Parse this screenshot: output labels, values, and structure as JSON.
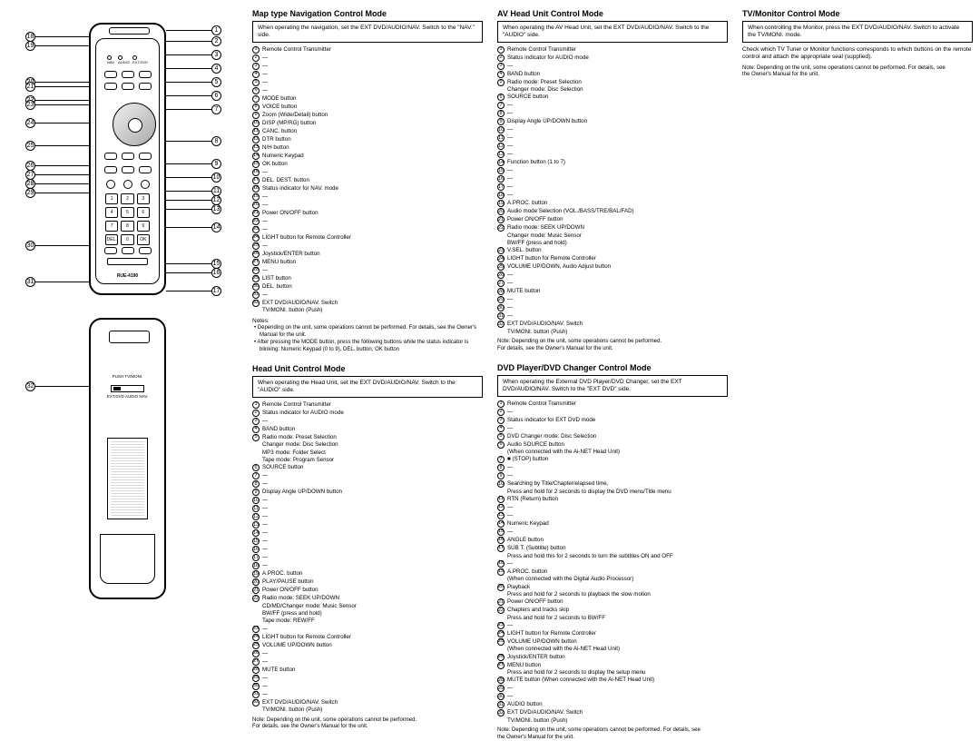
{
  "remoteModel": "RUE-4190",
  "rearSwitchLabel": "PUSH  TV/MONI.",
  "rearSwitchModes": "EXT.DVD   AUDIO   NAV.",
  "calloutsRight": [
    "1",
    "2",
    "3",
    "4",
    "5",
    "6",
    "7",
    "8",
    "9",
    "10",
    "11",
    "12",
    "13",
    "14",
    "15",
    "16",
    "17"
  ],
  "calloutsLeft": [
    "18",
    "19",
    "20",
    "21",
    "22",
    "23",
    "24",
    "25",
    "26",
    "27",
    "28",
    "29",
    "30",
    "31"
  ],
  "rearCallout": "32",
  "sections": {
    "mapNav": {
      "title": "Map type Navigation Control Mode",
      "notice": "When operating the navigation, set the EXT DVD/AUDIO/NAV. Switch to the \"NAV.\" side.",
      "items": [
        {
          "n": "1",
          "t": "Remote Control Transmitter"
        },
        {
          "n": "2",
          "t": "—"
        },
        {
          "n": "3",
          "t": "—"
        },
        {
          "n": "4",
          "t": "—"
        },
        {
          "n": "5",
          "t": "—"
        },
        {
          "n": "6",
          "t": "—"
        },
        {
          "n": "7",
          "t": "MODE button"
        },
        {
          "n": "8",
          "t": "VOICE button"
        },
        {
          "n": "9",
          "t": "Zoom (Wide/Detail) button"
        },
        {
          "n": "10",
          "t": "DISP (MP/RG) button"
        },
        {
          "n": "11",
          "t": "CANC. button"
        },
        {
          "n": "12",
          "t": "DTR button"
        },
        {
          "n": "13",
          "t": "N/H button"
        },
        {
          "n": "14",
          "t": "Numeric Keypad"
        },
        {
          "n": "15",
          "t": "OK button"
        },
        {
          "n": "16",
          "t": "—"
        },
        {
          "n": "17",
          "t": "DEL. DEST. button"
        },
        {
          "n": "18",
          "t": "Status indicator for NAV. mode"
        },
        {
          "n": "19",
          "t": "—"
        },
        {
          "n": "20",
          "t": "—"
        },
        {
          "n": "21",
          "t": "Power ON/OFF button"
        },
        {
          "n": "22",
          "t": "—"
        },
        {
          "n": "23",
          "t": "—"
        },
        {
          "n": "24",
          "t": "LIGHT button for Remote Controller"
        },
        {
          "n": "25",
          "t": "—"
        },
        {
          "n": "26",
          "t": "Joystick/ENTER button"
        },
        {
          "n": "27",
          "t": "MENU button"
        },
        {
          "n": "28",
          "t": "—"
        },
        {
          "n": "29",
          "t": "LIST button"
        },
        {
          "n": "30",
          "t": "DEL. button"
        },
        {
          "n": "31",
          "t": "—"
        },
        {
          "n": "32",
          "t": "EXT DVD/AUDIO/NAV. Switch\nTV/MONI. button (Push)"
        }
      ],
      "notesHeader": "Notes:",
      "notes": [
        "• Depending on the unit, some operations cannot be performed.\n   For details, see the Owner's Manual for the unit.",
        "• After pressing the MODE button, press the following buttons while the status indicator is blinking:\n   Numeric Keypad (0 to 9), DEL. button, OK button"
      ]
    },
    "headUnit": {
      "title": "Head Unit Control Mode",
      "notice": "When operating the Head Unit, set the EXT DVD/AUDIO/NAV. Switch to the \"AUDIO\" side.",
      "items": [
        {
          "n": "1",
          "t": "Remote Control Transmitter"
        },
        {
          "n": "2",
          "t": "Status indicator for AUDIO mode"
        },
        {
          "n": "3",
          "t": "—"
        },
        {
          "n": "4",
          "t": "BAND button"
        },
        {
          "n": "5",
          "t": "Radio mode: Preset Selection\nChanger mode: Disc Selection\nMP3 mode: Folder Select\nTape mode: Program Sensor"
        },
        {
          "n": "6",
          "t": "SOURCE button"
        },
        {
          "n": "7",
          "t": "—"
        },
        {
          "n": "8",
          "t": "—"
        },
        {
          "n": "9",
          "t": "Display Angle UP/DOWN button"
        },
        {
          "n": "10",
          "t": "—"
        },
        {
          "n": "11",
          "t": "—"
        },
        {
          "n": "12",
          "t": "—"
        },
        {
          "n": "13",
          "t": "—"
        },
        {
          "n": "14",
          "t": "—"
        },
        {
          "n": "15",
          "t": "—"
        },
        {
          "n": "16",
          "t": "—"
        },
        {
          "n": "17",
          "t": "—"
        },
        {
          "n": "18",
          "t": "—"
        },
        {
          "n": "19",
          "t": "A.PROC. button"
        },
        {
          "n": "20",
          "t": "PLAY/PAUSE button"
        },
        {
          "n": "21",
          "t": "Power ON/OFF button"
        },
        {
          "n": "22",
          "t": "Radio mode: SEEK UP/DOWN\nCD/MD/Changer mode: Music Sensor\n                                        BW/FF (press and hold)\nTape mode: REW/FF"
        },
        {
          "n": "23",
          "t": "—"
        },
        {
          "n": "24",
          "t": "LIGHT button for Remote Controller"
        },
        {
          "n": "25",
          "t": "VOLUME UP/DOWN button"
        },
        {
          "n": "26",
          "t": "—"
        },
        {
          "n": "27",
          "t": "—"
        },
        {
          "n": "28",
          "t": "MUTE button"
        },
        {
          "n": "29",
          "t": "—"
        },
        {
          "n": "30",
          "t": "—"
        },
        {
          "n": "31",
          "t": "—"
        },
        {
          "n": "32",
          "t": "EXT DVD/AUDIO/NAV. Switch\nTV/MONI. button (Push)"
        }
      ],
      "note": "Note: Depending on the unit, some operations cannot be performed.\n         For details, see the Owner's Manual for the unit."
    },
    "avHead": {
      "title": "AV Head Unit Control Mode",
      "notice": "When operating the AV Head Unit, set the EXT DVD/AUDIO/NAV. Switch to the \"AUDIO\" side.",
      "items": [
        {
          "n": "1",
          "t": "Remote Control Transmitter"
        },
        {
          "n": "2",
          "t": "Status indicator for AUDIO mode"
        },
        {
          "n": "3",
          "t": "—"
        },
        {
          "n": "4",
          "t": "BAND button"
        },
        {
          "n": "5",
          "t": "Radio mode: Preset Selection\nChanger mode: Disc Selection"
        },
        {
          "n": "6",
          "t": "SOURCE button"
        },
        {
          "n": "7",
          "t": "—"
        },
        {
          "n": "8",
          "t": "—"
        },
        {
          "n": "9",
          "t": "Display Angle UP/DOWN button"
        },
        {
          "n": "10",
          "t": "—"
        },
        {
          "n": "11",
          "t": "—"
        },
        {
          "n": "12",
          "t": "—"
        },
        {
          "n": "13",
          "t": "—"
        },
        {
          "n": "14",
          "t": "Function button (1 to 7)"
        },
        {
          "n": "15",
          "t": "—"
        },
        {
          "n": "16",
          "t": "—"
        },
        {
          "n": "17",
          "t": "—"
        },
        {
          "n": "18",
          "t": "—"
        },
        {
          "n": "19",
          "t": "A.PROC. button"
        },
        {
          "n": "20",
          "t": "Audio mode Selection (VOL./BASS/TRE/BAL/FAD)"
        },
        {
          "n": "21",
          "t": "Power ON/OFF button"
        },
        {
          "n": "22",
          "t": "Radio mode: SEEK UP/DOWN\nChanger mode: Music Sensor\n                              BW/FF (press and hold)"
        },
        {
          "n": "23",
          "t": "V.SEL. button"
        },
        {
          "n": "24",
          "t": "LIGHT button for Remote Controller"
        },
        {
          "n": "25",
          "t": "VOLUME UP/DOWN, Audio Adjust button"
        },
        {
          "n": "26",
          "t": "—"
        },
        {
          "n": "27",
          "t": "—"
        },
        {
          "n": "28",
          "t": "MUTE button"
        },
        {
          "n": "29",
          "t": "—"
        },
        {
          "n": "30",
          "t": "—"
        },
        {
          "n": "31",
          "t": "—"
        },
        {
          "n": "32",
          "t": "EXT DVD/AUDIO/NAV. Switch\nTV/MONI. button (Push)"
        }
      ],
      "note": "Note: Depending on the unit, some operations cannot be performed.\n         For details, see the Owner's Manual for the unit."
    },
    "dvd": {
      "title": "DVD Player/DVD Changer Control Mode",
      "notice": "When operating the External DVD Player/DVD Changer, set the EXT DVD/AUDIO/NAV. Switch to the \"EXT DVD\" side.",
      "items": [
        {
          "n": "1",
          "t": "Remote Control Transmitter"
        },
        {
          "n": "2",
          "t": "—"
        },
        {
          "n": "3",
          "t": "Status indicator for EXT DVD mode"
        },
        {
          "n": "4",
          "t": "—"
        },
        {
          "n": "5",
          "t": "DVD Changer mode: Disc Selection"
        },
        {
          "n": "6",
          "t": "Audio SOURCE button\n(When connected with the Ai-NET Head Unit)"
        },
        {
          "n": "7",
          "t": "■ (STOP) button"
        },
        {
          "n": "8",
          "t": "—"
        },
        {
          "n": "9",
          "t": "—"
        },
        {
          "n": "10",
          "t": "Searching by Title/Chapter/elapsed time,\nPress and hold for 2 seconds to display the DVD menu/Title menu"
        },
        {
          "n": "11",
          "t": "RTN (Return) button"
        },
        {
          "n": "12",
          "t": "—"
        },
        {
          "n": "13",
          "t": "—"
        },
        {
          "n": "14",
          "t": "Numeric Keypad"
        },
        {
          "n": "15",
          "t": "—"
        },
        {
          "n": "16",
          "t": "ANGLE button"
        },
        {
          "n": "17",
          "t": "SUB T. (Subtitle) button\nPress and hold this for 2 seconds to turn the subtitles ON and OFF"
        },
        {
          "n": "18",
          "t": "—"
        },
        {
          "n": "19",
          "t": "A.PROC. button\n(When connected with the Digital Audio Processor)"
        },
        {
          "n": "20",
          "t": "Playback\nPress and hold for 2 seconds to playback the slow motion"
        },
        {
          "n": "21",
          "t": "Power ON/OFF button"
        },
        {
          "n": "22",
          "t": "Chapters and tracks skip\nPress and hold for 2 seconds to BW/FF"
        },
        {
          "n": "23",
          "t": "—"
        },
        {
          "n": "24",
          "t": "LIGHT button for Remote Controller"
        },
        {
          "n": "25",
          "t": "VOLUME UP/DOWN button\n(When connected with the Ai-NET Head Unit)"
        },
        {
          "n": "26",
          "t": "Joystick/ENTER button"
        },
        {
          "n": "27",
          "t": "MENU button\nPress and hold for 2 seconds to display the setup menu"
        },
        {
          "n": "28",
          "t": "MUTE button (When connected with the Ai-NET Head Unit)"
        },
        {
          "n": "29",
          "t": "—"
        },
        {
          "n": "30",
          "t": "—"
        },
        {
          "n": "31",
          "t": "AUDIO button"
        },
        {
          "n": "32",
          "t": "EXT DVD/AUDIO/NAV. Switch\nTV/MONI. button (Push)"
        }
      ],
      "note": "Note: Depending on the unit, some operations cannot be performed. For details, see\n         the Owner's Manual for the unit."
    },
    "tvMonitor": {
      "title": "TV/Monitor Control Mode",
      "notice": "When controlling the Monitor, press the EXT DVD/AUDIO/NAV. Switch to activate the TV/MONI. mode.",
      "info": "Check which TV Tuner or Monitor functions corresponds to which buttons on the remote control and attach the appropriate seal (supplied).",
      "note": "Note: Depending on the unit, some operations cannot be performed. For details, see\n         the Owner's Manual for the unit."
    }
  }
}
